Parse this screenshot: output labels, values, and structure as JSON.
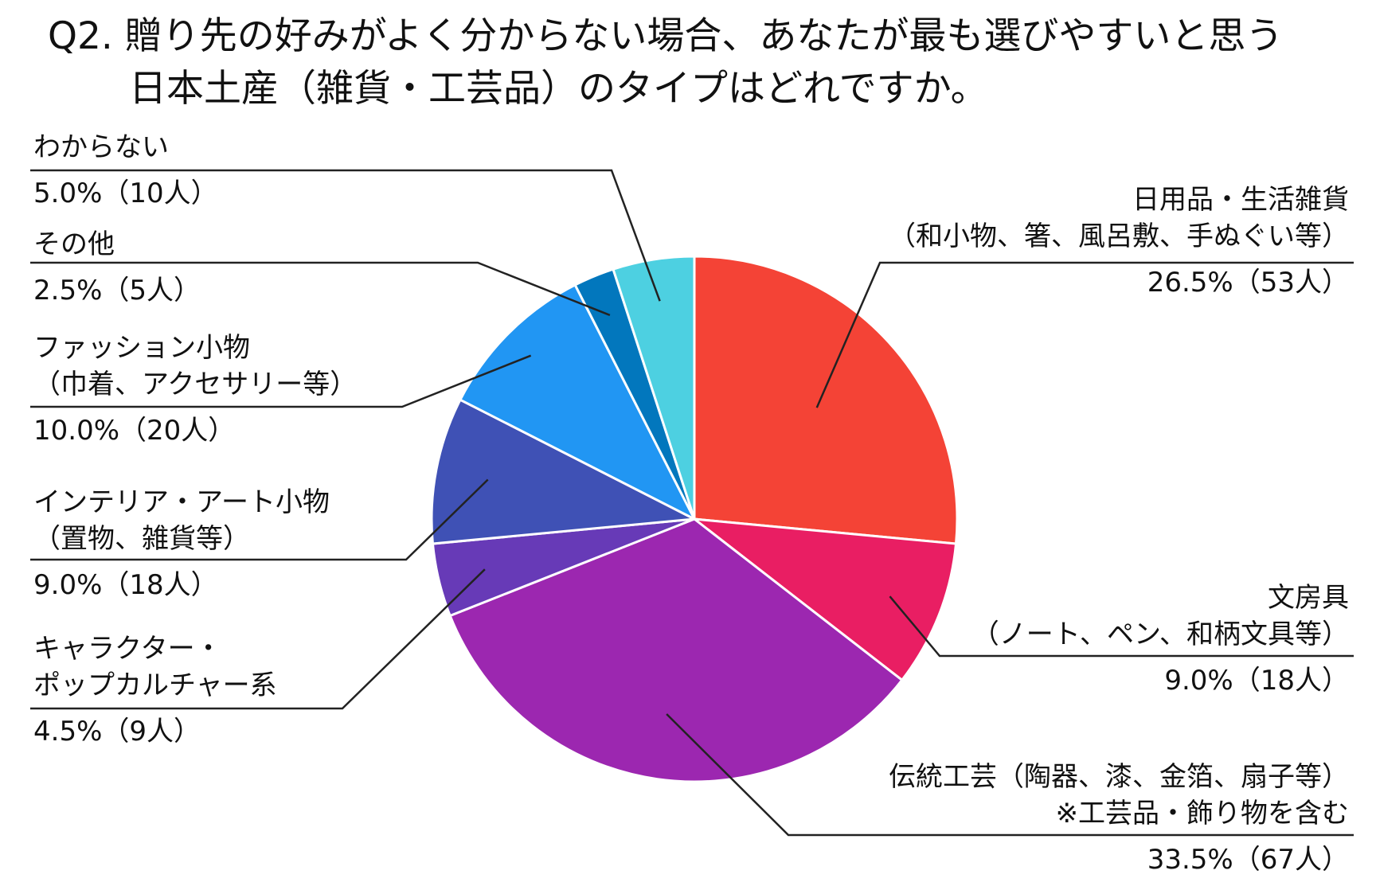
{
  "chart_data": {
    "type": "pie",
    "title_lines": [
      "Q2. 贈り先の好みがよく分からない場合、あなたが最も選びやすいと思う",
      "日本土産（雑貨・工芸品）のタイプはどれですか。"
    ],
    "slices": [
      {
        "lines": [
          "日用品・生活雑貨",
          "（和小物、箸、風呂敷、手ぬぐい等）"
        ],
        "value_label": "26.5%（53人）",
        "percent": 26.5,
        "count": 53,
        "color": "#F44336"
      },
      {
        "lines": [
          "文房具",
          "（ノート、ペン、和柄文具等）"
        ],
        "value_label": "9.0%（18人）",
        "percent": 9.0,
        "count": 18,
        "color": "#E91E63"
      },
      {
        "lines": [
          "伝統工芸（陶器、漆、金箔、扇子等）",
          "※工芸品・飾り物を含む"
        ],
        "value_label": "33.5%（67人）",
        "percent": 33.5,
        "count": 67,
        "color": "#9C27B0"
      },
      {
        "lines": [
          "キャラクター・",
          "ポップカルチャー系"
        ],
        "value_label": "4.5%（9人）",
        "percent": 4.5,
        "count": 9,
        "color": "#673AB7"
      },
      {
        "lines": [
          "インテリア・アート小物",
          "（置物、雑貨等）"
        ],
        "value_label": "9.0%（18人）",
        "percent": 9.0,
        "count": 18,
        "color": "#3F51B5"
      },
      {
        "lines": [
          "ファッション小物",
          "（巾着、アクセサリー等）"
        ],
        "value_label": "10.0%（20人）",
        "percent": 10.0,
        "count": 20,
        "color": "#2196F3"
      },
      {
        "lines": [
          "その他"
        ],
        "value_label": "2.5%（5人）",
        "percent": 2.5,
        "count": 5,
        "color": "#0277BD"
      },
      {
        "lines": [
          "わからない"
        ],
        "value_label": "5.0%（10人）",
        "percent": 5.0,
        "count": 10,
        "color": "#4DD0E1"
      }
    ]
  }
}
